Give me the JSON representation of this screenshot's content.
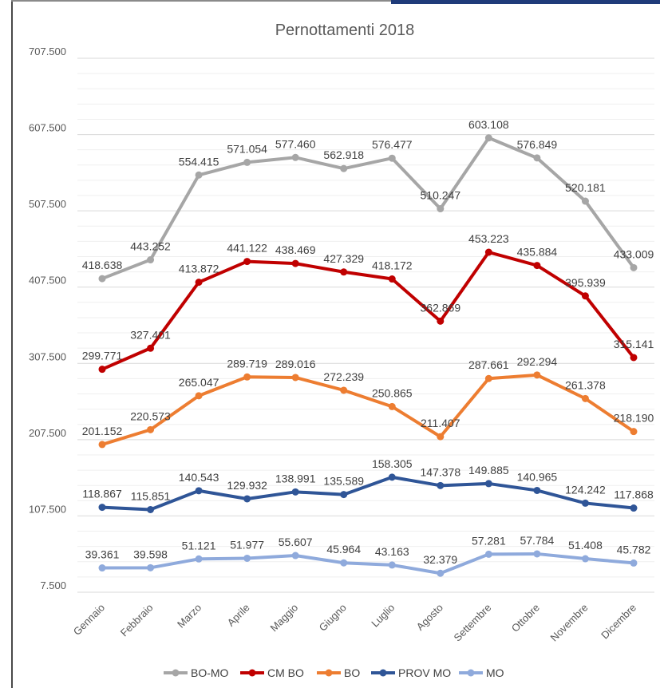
{
  "chart_data": {
    "type": "line",
    "title": "Pernottamenti 2018",
    "xlabel": "",
    "ylabel": "",
    "categories": [
      "Gennaio",
      "Febbraio",
      "Marzo",
      "Aprile",
      "Maggio",
      "Giugno",
      "Luglio",
      "Agosto",
      "Settembre",
      "Ottobre",
      "Novembre",
      "Dicembre"
    ],
    "ylim": [
      7500,
      707500
    ],
    "yticks": [
      "7.500",
      "107.500",
      "207.500",
      "307.500",
      "407.500",
      "507.500",
      "607.500",
      "707.500"
    ],
    "ytick_values": [
      7500,
      107500,
      207500,
      307500,
      407500,
      507500,
      607500,
      707500
    ],
    "grid": true,
    "legend": "bottom",
    "series": [
      {
        "name": "BO-MO",
        "color": "#a6a6a6",
        "values": [
          418638,
          443252,
          554415,
          571054,
          577460,
          562918,
          576477,
          510247,
          603108,
          576849,
          520181,
          433009
        ],
        "labels": [
          "418.638",
          "443.252",
          "554.415",
          "571.054",
          "577.460",
          "562.918",
          "576.477",
          "510.247",
          "603.108",
          "576.849",
          "520.181",
          "433.009"
        ]
      },
      {
        "name": "CM BO",
        "color": "#c00000",
        "values": [
          299771,
          327401,
          413872,
          441122,
          438469,
          427329,
          418172,
          362869,
          453223,
          435884,
          395939,
          315141
        ],
        "labels": [
          "299.771",
          "327.401",
          "413.872",
          "441.122",
          "438.469",
          "427.329",
          "418.172",
          "362.869",
          "453.223",
          "435.884",
          "395.939",
          "315.141"
        ]
      },
      {
        "name": "BO",
        "color": "#ed7d31",
        "values": [
          201152,
          220573,
          265047,
          289719,
          289016,
          272239,
          250865,
          211407,
          287661,
          292294,
          261378,
          218190
        ],
        "labels": [
          "201.152",
          "220.573",
          "265.047",
          "289.719",
          "289.016",
          "272.239",
          "250.865",
          "211.407",
          "287.661",
          "292.294",
          "261.378",
          "218.190"
        ]
      },
      {
        "name": "PROV MO",
        "color": "#2f5597",
        "values": [
          118867,
          115851,
          140543,
          129932,
          138991,
          135589,
          158305,
          147378,
          149885,
          140965,
          124242,
          117868
        ],
        "labels": [
          "118.867",
          "115.851",
          "140.543",
          "129.932",
          "138.991",
          "135.589",
          "158.305",
          "147.378",
          "149.885",
          "140.965",
          "124.242",
          "117.868"
        ]
      },
      {
        "name": "MO",
        "color": "#8faadc",
        "values": [
          39361,
          39598,
          51121,
          51977,
          55607,
          45964,
          43163,
          32379,
          57281,
          57784,
          51408,
          45782
        ],
        "labels": [
          "39.361",
          "39.598",
          "51.121",
          "51.977",
          "55.607",
          "45.964",
          "43.163",
          "32.379",
          "57.281",
          "57.784",
          "51.408",
          "45.782"
        ]
      }
    ]
  }
}
